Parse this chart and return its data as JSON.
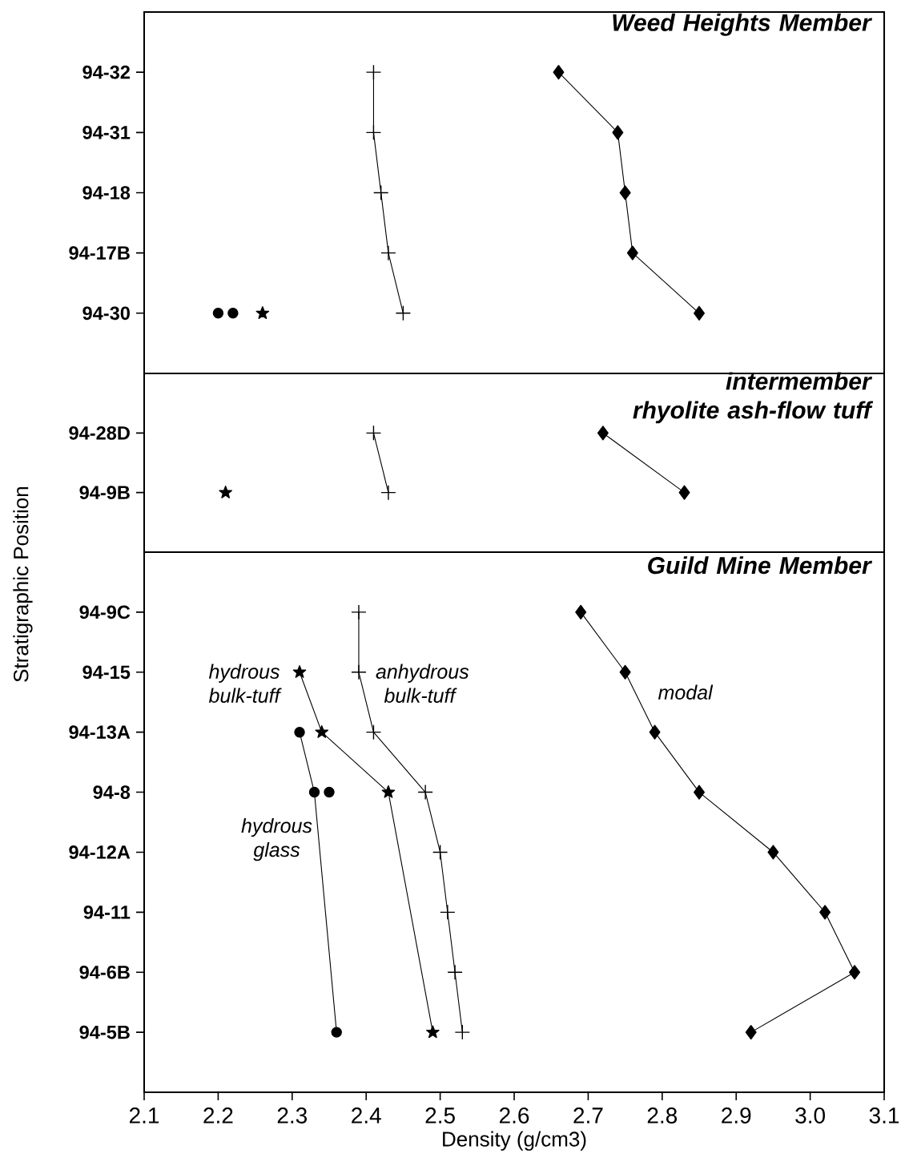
{
  "chart_data": [
    {
      "type": "line",
      "orientation": "horizontal",
      "title": "Weed Heights Member",
      "categories": [
        "94-32",
        "94-31",
        "94-18",
        "94-17B",
        "94-30"
      ],
      "xlim": [
        2.1,
        3.1
      ],
      "tick_labels": "y",
      "legend": false,
      "grid": false,
      "line_style": "solid",
      "series": [
        {
          "color": "#000000",
          "marker": "diamond",
          "values": [
            2.66,
            2.74,
            2.75,
            2.76,
            2.85
          ]
        },
        {
          "color": "#000000",
          "marker": "cross",
          "values": [
            2.41,
            2.41,
            2.42,
            2.43,
            2.45
          ]
        },
        {
          "color": "#000000",
          "marker": "star",
          "values": [
            null,
            null,
            null,
            null,
            2.26
          ]
        },
        {
          "color": "#000000",
          "marker": "circle",
          "values": [
            null,
            null,
            null,
            null,
            2.2
          ]
        },
        {
          "type": "scatter",
          "color": "#000000",
          "marker": "circle",
          "values": [
            null,
            null,
            null,
            null,
            2.22
          ]
        }
      ]
    },
    {
      "type": "line",
      "orientation": "horizontal",
      "title": "intermember rhyolite ash-flow tuff",
      "ylabel": "Stratigraphic Position",
      "categories": [
        "94-28D",
        "94-9B"
      ],
      "xlim": [
        2.1,
        3.1
      ],
      "tick_labels": "y",
      "legend": false,
      "grid": false,
      "line_style": "solid",
      "series": [
        {
          "color": "#000000",
          "marker": "diamond",
          "values": [
            2.72,
            2.83
          ]
        },
        {
          "color": "#000000",
          "marker": "cross",
          "values": [
            2.41,
            2.43
          ]
        },
        {
          "color": "#000000",
          "marker": "star",
          "values": [
            null,
            2.21
          ]
        }
      ]
    },
    {
      "type": "line",
      "orientation": "horizontal",
      "title": "Guild Mine Member",
      "xlabel": "Density (g/cm3)",
      "categories": [
        "94-9C",
        "94-15",
        "94-13A",
        "94-8",
        "94-12A",
        "94-11",
        "94-6B",
        "94-5B"
      ],
      "xlim": [
        2.1,
        3.1
      ],
      "xticks": [
        2.1,
        2.2,
        2.3,
        2.4,
        2.5,
        2.6,
        2.7,
        2.8,
        2.9,
        {
          "value": 3,
          "label": "3.0"
        },
        3.1
      ],
      "legend": false,
      "grid": false,
      "line_style": "solid",
      "series": [
        {
          "name": "modal",
          "color": "#000000",
          "marker": "diamond",
          "values": [
            2.69,
            2.75,
            2.79,
            2.85,
            2.95,
            3.02,
            3.06,
            2.92
          ]
        },
        {
          "name": "anhydrous bulk-tuff",
          "color": "#000000",
          "marker": "cross",
          "values": [
            2.39,
            2.39,
            2.41,
            2.48,
            2.5,
            2.51,
            2.52,
            2.53
          ]
        },
        {
          "name": "hydrous bulk-tuff",
          "color": "#000000",
          "marker": "star",
          "values": [
            null,
            2.31,
            2.34,
            2.43,
            null,
            null,
            null,
            2.49
          ]
        },
        {
          "name": "hydrous glass",
          "color": "#000000",
          "marker": "circle",
          "values": [
            null,
            null,
            2.31,
            2.33,
            null,
            null,
            null,
            2.36
          ]
        },
        {
          "type": "scatter",
          "color": "#000000",
          "marker": "circle",
          "values": [
            null,
            null,
            null,
            2.35,
            null,
            null,
            null,
            null
          ]
        }
      ]
    }
  ]
}
